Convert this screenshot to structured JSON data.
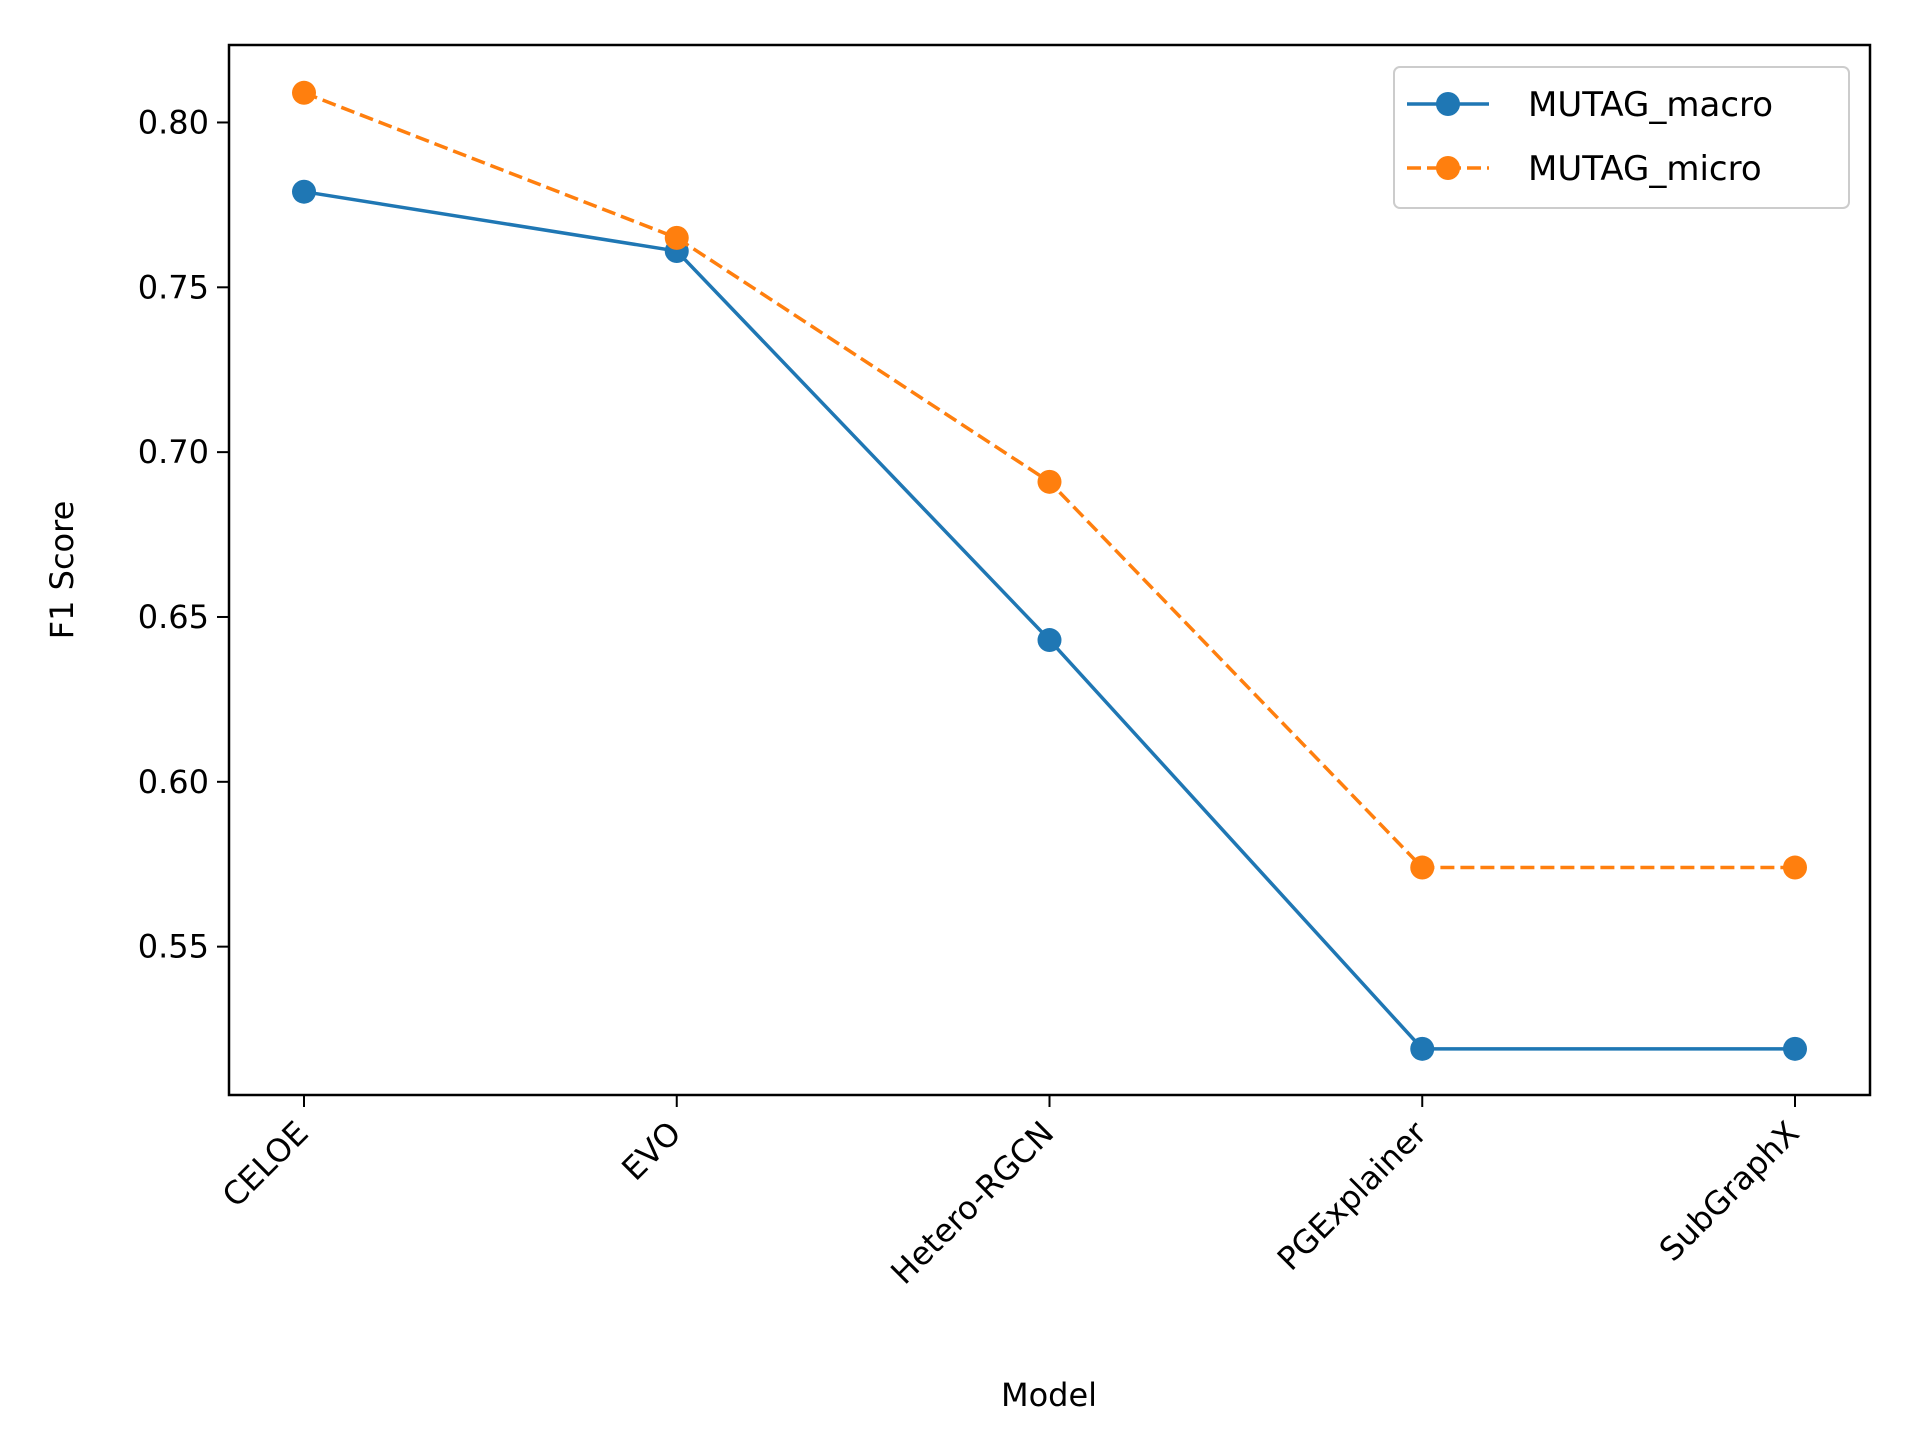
{
  "chart_data": {
    "type": "line",
    "title": "",
    "xlabel": "Model",
    "ylabel": "F1 Score",
    "categories": [
      "CELOE",
      "EVO",
      "Hetero-RGCN",
      "PGExplainer",
      "SubGraphX"
    ],
    "yticks": [
      "0.55",
      "0.60",
      "0.65",
      "0.70",
      "0.75",
      "0.80"
    ],
    "ylim": [
      0.505,
      0.8235
    ],
    "grid": false,
    "legend_position": "top-right",
    "series": [
      {
        "name": "MUTAG_macro",
        "values": [
          0.779,
          0.761,
          0.643,
          0.519,
          0.519
        ],
        "color": "#1f77b4",
        "line_style": "solid",
        "marker": "circle"
      },
      {
        "name": "MUTAG_micro",
        "values": [
          0.809,
          0.765,
          0.691,
          0.574,
          0.574
        ],
        "color": "#ff7f0e",
        "line_style": "dashed",
        "marker": "circle"
      }
    ]
  }
}
